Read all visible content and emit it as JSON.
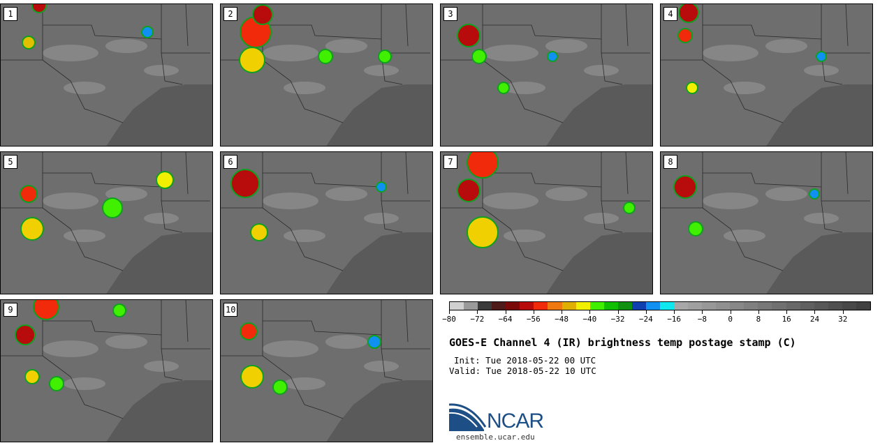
{
  "panels": [
    {
      "label": "1"
    },
    {
      "label": "2"
    },
    {
      "label": "3"
    },
    {
      "label": "4"
    },
    {
      "label": "5"
    },
    {
      "label": "6"
    },
    {
      "label": "7"
    },
    {
      "label": "8"
    },
    {
      "label": "9"
    },
    {
      "label": "10"
    }
  ],
  "colorbar": {
    "colors": [
      "#d0d0d0",
      "#9a9a9a",
      "#3a3a3a",
      "#4e1a1a",
      "#7a0a0a",
      "#b80c0c",
      "#f02a0a",
      "#f07810",
      "#e0b000",
      "#f0f000",
      "#40f000",
      "#10c000",
      "#109010",
      "#1040b0",
      "#1090f0",
      "#10e8f0",
      "#a8a8a8",
      "#a0a0a0",
      "#989898",
      "#909090",
      "#888888",
      "#808080",
      "#787878",
      "#707070",
      "#686868",
      "#606060",
      "#585858",
      "#505050",
      "#484848",
      "#404040"
    ],
    "tick_values": [
      -80,
      -72,
      -64,
      -56,
      -48,
      -40,
      -32,
      -24,
      -16,
      -8,
      0,
      8,
      16,
      24,
      32
    ],
    "tick_labels": [
      "−80",
      "−72",
      "−64",
      "−56",
      "−48",
      "−40",
      "−32",
      "−24",
      "−16",
      "−8",
      "0",
      "8",
      "16",
      "24",
      "32"
    ],
    "vmin": -80,
    "vmax": 40
  },
  "title": "GOES-E Channel 4 (IR) brightness temp postage stamp (C)",
  "init": "Init: Tue 2018-05-22 00 UTC",
  "valid": "Valid: Tue 2018-05-22 10 UTC",
  "logo": {
    "text": "NCAR",
    "url": "ensemble.ucar.edu",
    "color": "#1d4f86"
  }
}
